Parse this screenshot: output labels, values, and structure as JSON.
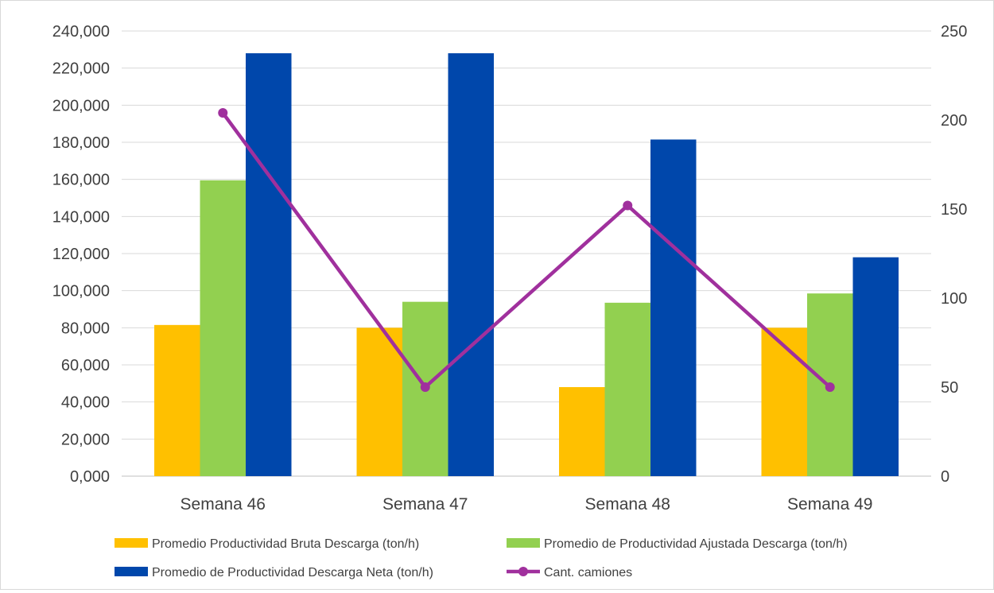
{
  "chart_data": {
    "type": "bar",
    "title": "",
    "categories": [
      "Semana 46",
      "Semana 47",
      "Semana 48",
      "Semana 49"
    ],
    "series": [
      {
        "name": "Promedio Productividad Bruta Descarga (ton/h)",
        "type": "bar",
        "axis": "left",
        "color": "#FFC000",
        "values": [
          81.5,
          80.0,
          48.0,
          80.0
        ]
      },
      {
        "name": "Promedio de Productividad Ajustada Descarga (ton/h)",
        "type": "bar",
        "axis": "left",
        "color": "#92D050",
        "values": [
          159.5,
          94.0,
          93.5,
          98.5
        ]
      },
      {
        "name": "Promedio de Productividad Descarga  Neta (ton/h)",
        "type": "bar",
        "axis": "left",
        "color": "#0047AB",
        "values": [
          228.0,
          228.0,
          181.5,
          118.0
        ]
      },
      {
        "name": "Cant. camiones",
        "type": "line",
        "axis": "right",
        "color": "#A0309D",
        "values": [
          204,
          50,
          152,
          50
        ]
      }
    ],
    "y_left": {
      "min": 0,
      "max": 240,
      "step": 20,
      "tick_labels": [
        "0,000",
        "20,000",
        "40,000",
        "60,000",
        "80,000",
        "100,000",
        "120,000",
        "140,000",
        "160,000",
        "180,000",
        "200,000",
        "220,000",
        "240,000"
      ]
    },
    "y_right": {
      "min": 0,
      "max": 250,
      "step": 50,
      "tick_labels": [
        "0",
        "50",
        "100",
        "150",
        "200",
        "250"
      ]
    },
    "grid": true,
    "legend_position": "bottom"
  }
}
